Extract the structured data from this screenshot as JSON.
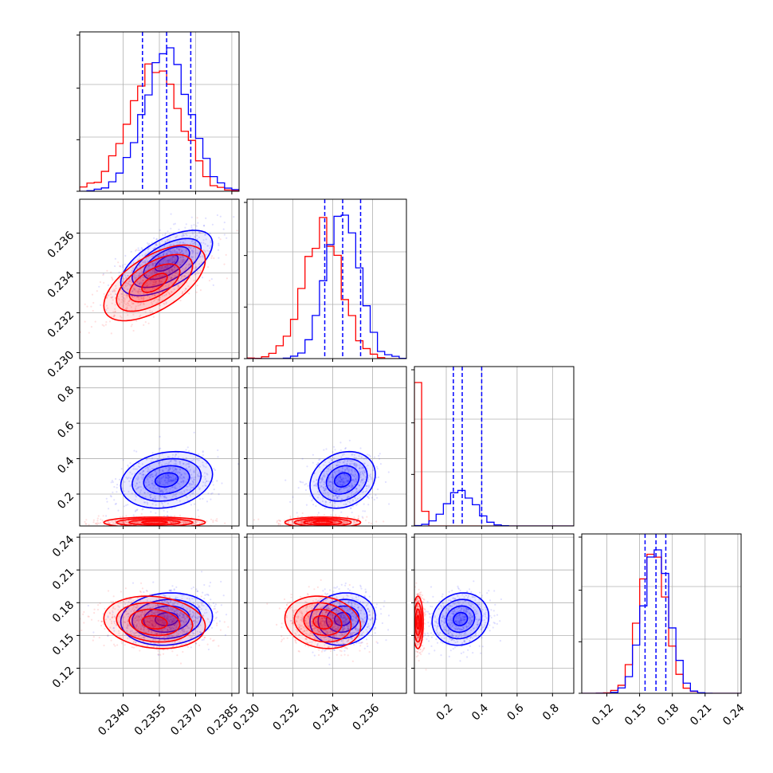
{
  "chart_data": {
    "type": "corner",
    "colors": {
      "series_a": "#0000ff",
      "series_b": "#ff0000",
      "grid": "#b0b0b0",
      "frame": "#000000"
    },
    "parameters": [
      {
        "range": [
          0.2322,
          0.2388
        ],
        "ticks": [
          0.234,
          0.2355,
          0.237,
          0.2385
        ],
        "tick_labels": [
          "0.2340",
          "0.2355",
          "0.2370",
          "0.2385"
        ]
      },
      {
        "range": [
          0.2297,
          0.2377
        ],
        "ticks": [
          0.23,
          0.232,
          0.234,
          0.236
        ],
        "tick_labels": [
          "0.230",
          "0.232",
          "0.234",
          "0.236"
        ]
      },
      {
        "range": [
          0.02,
          0.92
        ],
        "ticks": [
          0.2,
          0.4,
          0.6,
          0.8
        ],
        "tick_labels": [
          "0.2",
          "0.4",
          "0.6",
          "0.8"
        ]
      },
      {
        "range": [
          0.097,
          0.243
        ],
        "ticks": [
          0.12,
          0.15,
          0.18,
          0.21,
          0.24
        ],
        "tick_labels": [
          "0.12",
          "0.15",
          "0.18",
          "0.21",
          "0.24"
        ]
      }
    ],
    "series": [
      {
        "name": "",
        "color": "#0000ff",
        "mean": [
          0.2358,
          0.2345,
          0.28,
          0.165
        ],
        "sd": [
          0.00095,
          0.00082,
          0.08,
          0.012
        ],
        "quantiles": [
          [
            0.2348,
            0.2358,
            0.2368
          ],
          [
            0.2336,
            0.2345,
            0.2354
          ],
          [
            0.24,
            0.29,
            0.4
          ],
          [
            0.155,
            0.165,
            0.174
          ]
        ]
      },
      {
        "name": "",
        "color": "#ff0000",
        "mean": [
          0.2353,
          0.2335,
          0.04,
          0.162
        ],
        "sd": [
          0.00105,
          0.00095,
          0.015,
          0.012
        ],
        "quantiles": null
      }
    ],
    "correlations": {
      "series_a": [
        [
          1,
          0.6,
          0.2,
          0.1
        ],
        [
          0.6,
          1,
          0.2,
          0.1
        ],
        [
          0.2,
          0.2,
          1,
          0.1
        ],
        [
          0.1,
          0.1,
          0.1,
          1
        ]
      ],
      "series_b": [
        [
          1,
          0.6,
          0.0,
          -0.15
        ],
        [
          0.6,
          1,
          0.0,
          -0.15
        ],
        [
          0.0,
          0.0,
          1,
          0.0
        ],
        [
          -0.15,
          -0.15,
          0.0,
          1
        ]
      ]
    },
    "contour_levels_sigma": [
      0.5,
      1.0,
      1.5,
      2.0
    ],
    "grid": true
  }
}
